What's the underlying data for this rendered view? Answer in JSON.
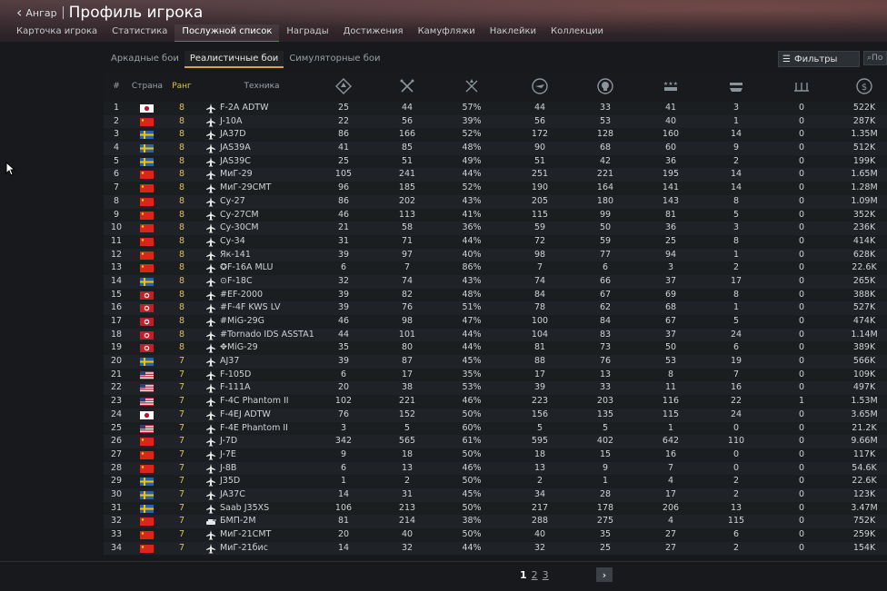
{
  "header": {
    "back_label": "Ангар",
    "title": "Профиль игрока",
    "tabs": [
      "Карточка игрока",
      "Статистика",
      "Послужной список",
      "Награды",
      "Достижения",
      "Камуфляжи",
      "Наклейки",
      "Коллекции"
    ],
    "active_tab": 2
  },
  "modes": {
    "items": [
      "Аркадные бои",
      "Реалистичные бои",
      "Симуляторные бои"
    ],
    "active": 1,
    "filters_label": "Фильтры",
    "search_placeholder": "По"
  },
  "colors": {
    "rank": "#e0c060",
    "accent_tab": "#e04040",
    "accent_mode": "#e0a040"
  },
  "columns": {
    "num": "#",
    "country": "Страна",
    "rank": "Ранг",
    "vehicle": "Техника",
    "icons": [
      "battles-icon",
      "respawns-icon",
      "victories-icon",
      "air-targets-icon",
      "deaths-icon",
      "ground-targets-icon",
      "naval-targets-icon",
      "assists-icon",
      "research-icon"
    ]
  },
  "rows": [
    {
      "n": "1",
      "c": "japan",
      "r": "8",
      "v": "F-2A ADTW",
      "a": "25",
      "b": "44",
      "p": "57%",
      "d": "44",
      "e": "33",
      "f": "41",
      "g": "3",
      "h": "0",
      "k": "522K"
    },
    {
      "n": "2",
      "c": "china",
      "r": "8",
      "v": "J-10A",
      "a": "22",
      "b": "56",
      "p": "39%",
      "d": "56",
      "e": "53",
      "f": "40",
      "g": "1",
      "h": "0",
      "k": "287K"
    },
    {
      "n": "3",
      "c": "sweden",
      "r": "8",
      "v": "JA37D",
      "a": "86",
      "b": "166",
      "p": "52%",
      "d": "172",
      "e": "128",
      "f": "160",
      "g": "14",
      "h": "0",
      "k": "1.35M"
    },
    {
      "n": "4",
      "c": "sweden",
      "r": "8",
      "v": "JAS39A",
      "a": "41",
      "b": "85",
      "p": "48%",
      "d": "90",
      "e": "68",
      "f": "60",
      "g": "9",
      "h": "0",
      "k": "512K"
    },
    {
      "n": "5",
      "c": "sweden",
      "r": "8",
      "v": "JAS39C",
      "a": "25",
      "b": "51",
      "p": "49%",
      "d": "51",
      "e": "42",
      "f": "36",
      "g": "2",
      "h": "0",
      "k": "199K"
    },
    {
      "n": "6",
      "c": "china",
      "r": "8",
      "v": "МиГ-29",
      "a": "105",
      "b": "241",
      "p": "44%",
      "d": "251",
      "e": "221",
      "f": "195",
      "g": "14",
      "h": "0",
      "k": "1.65M"
    },
    {
      "n": "7",
      "c": "china",
      "r": "8",
      "v": "МиГ-29СМТ",
      "a": "96",
      "b": "185",
      "p": "52%",
      "d": "190",
      "e": "164",
      "f": "141",
      "g": "14",
      "h": "0",
      "k": "1.28M"
    },
    {
      "n": "8",
      "c": "china",
      "r": "8",
      "v": "Су-27",
      "a": "86",
      "b": "202",
      "p": "43%",
      "d": "205",
      "e": "180",
      "f": "143",
      "g": "8",
      "h": "0",
      "k": "1.09M"
    },
    {
      "n": "9",
      "c": "china",
      "r": "8",
      "v": "Су-27СМ",
      "a": "46",
      "b": "113",
      "p": "41%",
      "d": "115",
      "e": "99",
      "f": "81",
      "g": "5",
      "h": "0",
      "k": "352K"
    },
    {
      "n": "10",
      "c": "china",
      "r": "8",
      "v": "Су-30СМ",
      "a": "21",
      "b": "58",
      "p": "36%",
      "d": "59",
      "e": "50",
      "f": "36",
      "g": "3",
      "h": "0",
      "k": "236K"
    },
    {
      "n": "11",
      "c": "china",
      "r": "8",
      "v": "Су-34",
      "a": "31",
      "b": "71",
      "p": "44%",
      "d": "72",
      "e": "59",
      "f": "25",
      "g": "8",
      "h": "0",
      "k": "414K"
    },
    {
      "n": "12",
      "c": "china",
      "r": "8",
      "v": "Як-141",
      "a": "39",
      "b": "97",
      "p": "40%",
      "d": "98",
      "e": "77",
      "f": "94",
      "g": "1",
      "h": "0",
      "k": "628K"
    },
    {
      "n": "13",
      "c": "china",
      "r": "8",
      "v": "✪F-16A MLU",
      "a": "6",
      "b": "7",
      "p": "86%",
      "d": "7",
      "e": "6",
      "f": "3",
      "g": "2",
      "h": "0",
      "k": "22.6K"
    },
    {
      "n": "14",
      "c": "sweden",
      "r": "8",
      "v": "⊙F-18C",
      "a": "32",
      "b": "74",
      "p": "43%",
      "d": "74",
      "e": "66",
      "f": "37",
      "g": "17",
      "h": "0",
      "k": "265K"
    },
    {
      "n": "15",
      "c": "korea",
      "r": "8",
      "v": "#EF-2000",
      "a": "39",
      "b": "82",
      "p": "48%",
      "d": "84",
      "e": "67",
      "f": "69",
      "g": "8",
      "h": "0",
      "k": "388K"
    },
    {
      "n": "16",
      "c": "korea",
      "r": "8",
      "v": "#F-4F KWS LV",
      "a": "39",
      "b": "76",
      "p": "51%",
      "d": "78",
      "e": "62",
      "f": "68",
      "g": "1",
      "h": "0",
      "k": "527K"
    },
    {
      "n": "17",
      "c": "korea",
      "r": "8",
      "v": "#MiG-29G",
      "a": "46",
      "b": "98",
      "p": "47%",
      "d": "100",
      "e": "84",
      "f": "67",
      "g": "5",
      "h": "0",
      "k": "474K"
    },
    {
      "n": "18",
      "c": "korea",
      "r": "8",
      "v": "#Tornado IDS ASSTA1",
      "a": "44",
      "b": "101",
      "p": "44%",
      "d": "104",
      "e": "83",
      "f": "37",
      "g": "24",
      "h": "0",
      "k": "1.14M"
    },
    {
      "n": "19",
      "c": "korea",
      "r": "8",
      "v": "✥MiG-29",
      "a": "35",
      "b": "80",
      "p": "44%",
      "d": "81",
      "e": "73",
      "f": "50",
      "g": "6",
      "h": "0",
      "k": "389K"
    },
    {
      "n": "20",
      "c": "sweden",
      "r": "7",
      "v": "AJ37",
      "a": "39",
      "b": "87",
      "p": "45%",
      "d": "88",
      "e": "76",
      "f": "53",
      "g": "19",
      "h": "0",
      "k": "566K"
    },
    {
      "n": "21",
      "c": "usa",
      "r": "7",
      "v": "F-105D",
      "a": "6",
      "b": "17",
      "p": "35%",
      "d": "17",
      "e": "13",
      "f": "8",
      "g": "7",
      "h": "0",
      "k": "109K"
    },
    {
      "n": "22",
      "c": "usa",
      "r": "7",
      "v": "F-111A",
      "a": "20",
      "b": "38",
      "p": "53%",
      "d": "39",
      "e": "33",
      "f": "11",
      "g": "16",
      "h": "0",
      "k": "497K"
    },
    {
      "n": "23",
      "c": "usa",
      "r": "7",
      "v": "F-4C Phantom II",
      "a": "102",
      "b": "221",
      "p": "46%",
      "d": "223",
      "e": "203",
      "f": "116",
      "g": "22",
      "h": "1",
      "k": "1.53M"
    },
    {
      "n": "24",
      "c": "japan",
      "r": "7",
      "v": "F-4EJ ADTW",
      "a": "76",
      "b": "152",
      "p": "50%",
      "d": "156",
      "e": "135",
      "f": "115",
      "g": "24",
      "h": "0",
      "k": "3.65M"
    },
    {
      "n": "25",
      "c": "usa",
      "r": "7",
      "v": "F-4E Phantom II",
      "a": "3",
      "b": "5",
      "p": "60%",
      "d": "5",
      "e": "5",
      "f": "1",
      "g": "0",
      "h": "0",
      "k": "21.2K"
    },
    {
      "n": "26",
      "c": "china",
      "r": "7",
      "v": "J-7D",
      "a": "342",
      "b": "565",
      "p": "61%",
      "d": "595",
      "e": "402",
      "f": "642",
      "g": "110",
      "h": "0",
      "k": "9.66M"
    },
    {
      "n": "27",
      "c": "china",
      "r": "7",
      "v": "J-7E",
      "a": "9",
      "b": "18",
      "p": "50%",
      "d": "18",
      "e": "15",
      "f": "16",
      "g": "0",
      "h": "0",
      "k": "117K"
    },
    {
      "n": "28",
      "c": "china",
      "r": "7",
      "v": "J-8B",
      "a": "6",
      "b": "13",
      "p": "46%",
      "d": "13",
      "e": "9",
      "f": "7",
      "g": "0",
      "h": "0",
      "k": "54.6K"
    },
    {
      "n": "29",
      "c": "sweden",
      "r": "7",
      "v": "J35D",
      "a": "1",
      "b": "2",
      "p": "50%",
      "d": "2",
      "e": "1",
      "f": "4",
      "g": "2",
      "h": "0",
      "k": "22.6K"
    },
    {
      "n": "30",
      "c": "sweden",
      "r": "7",
      "v": "JA37C",
      "a": "14",
      "b": "31",
      "p": "45%",
      "d": "34",
      "e": "28",
      "f": "17",
      "g": "2",
      "h": "0",
      "k": "123K"
    },
    {
      "n": "31",
      "c": "sweden",
      "r": "7",
      "v": "Saab J35XS",
      "a": "106",
      "b": "213",
      "p": "50%",
      "d": "217",
      "e": "178",
      "f": "206",
      "g": "13",
      "h": "0",
      "k": "3.47M"
    },
    {
      "n": "32",
      "c": "china",
      "r": "7",
      "v": "БМП-2М",
      "a": "81",
      "b": "214",
      "p": "38%",
      "d": "288",
      "e": "275",
      "f": "4",
      "g": "115",
      "h": "0",
      "k": "752K",
      "ground": true
    },
    {
      "n": "33",
      "c": "china",
      "r": "7",
      "v": "МиГ-21СМТ",
      "a": "20",
      "b": "40",
      "p": "50%",
      "d": "40",
      "e": "35",
      "f": "27",
      "g": "6",
      "h": "0",
      "k": "259K"
    },
    {
      "n": "34",
      "c": "china",
      "r": "7",
      "v": "МиГ-21бис",
      "a": "14",
      "b": "32",
      "p": "44%",
      "d": "32",
      "e": "25",
      "f": "27",
      "g": "2",
      "h": "0",
      "k": "154K"
    }
  ],
  "pager": {
    "pages": [
      "1",
      "2",
      "3"
    ],
    "current": 0
  }
}
